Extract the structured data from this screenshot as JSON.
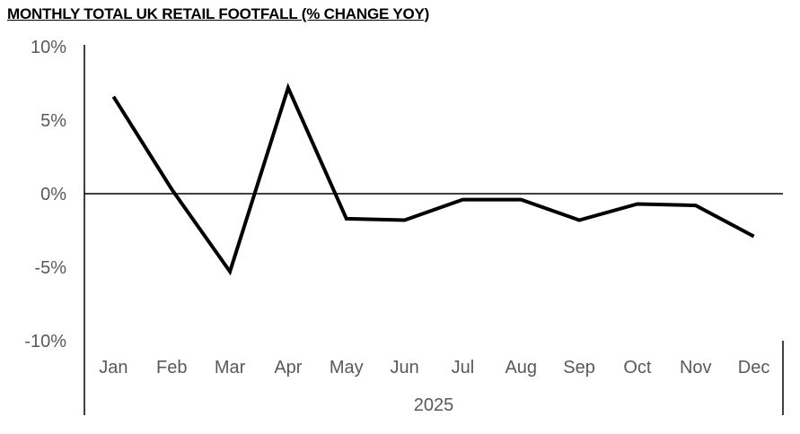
{
  "chart_data": {
    "type": "line",
    "title": "MONTHLY TOTAL UK RETAIL FOOTFALL (% CHANGE YOY)",
    "categories": [
      "Jan",
      "Feb",
      "Mar",
      "Apr",
      "May",
      "Jun",
      "Jul",
      "Aug",
      "Sep",
      "Oct",
      "Nov",
      "Dec"
    ],
    "group_label": "2025",
    "series": [
      {
        "values": [
          6.6,
          0.3,
          -5.3,
          7.2,
          -1.7,
          -1.8,
          -0.4,
          -0.4,
          -1.8,
          -0.7,
          -0.8,
          -2.9
        ]
      }
    ],
    "ylim": [
      -10,
      10
    ],
    "yticks": [
      10,
      5,
      0,
      -5,
      -10
    ],
    "ytick_labels": [
      "10%",
      "5%",
      "0%",
      "-5%",
      "-10%"
    ],
    "grid": false,
    "line_color": "#000000"
  }
}
